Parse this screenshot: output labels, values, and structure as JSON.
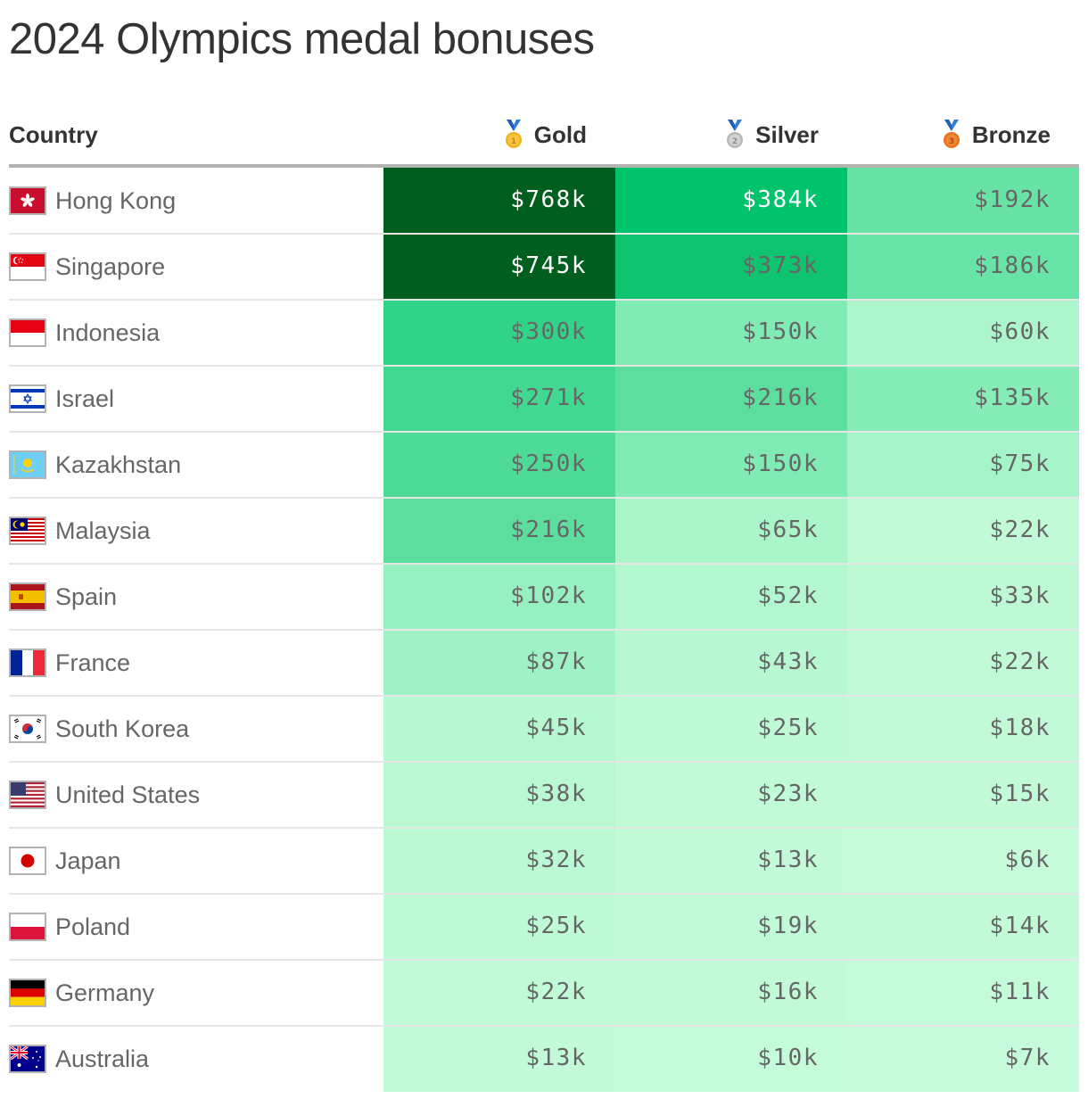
{
  "title": "2024 Olympics medal bonuses",
  "header": {
    "country": "Country",
    "gold": "Gold",
    "silver": "Silver",
    "bronze": "Bronze",
    "icons": [
      "gold-medal-icon",
      "silver-medal-icon",
      "bronze-medal-icon"
    ]
  },
  "rows": [
    {
      "country": "Hong Kong",
      "flag": "flag-hong-kong-icon",
      "gold": "$768k",
      "silver": "$384k",
      "bronze": "$192k",
      "colors": {
        "gold": "#005e1f",
        "silver": "#00c36b",
        "bronze": "#67e3a6"
      },
      "text_light": {
        "gold": true,
        "silver": true,
        "bronze": false
      }
    },
    {
      "country": "Singapore",
      "flag": "flag-singapore-icon",
      "gold": "$745k",
      "silver": "$373k",
      "bronze": "$186k",
      "colors": {
        "gold": "#005e1f",
        "silver": "#0ec46f",
        "bronze": "#69e4a8"
      },
      "text_light": {
        "gold": true,
        "silver": false,
        "bronze": false
      }
    },
    {
      "country": "Indonesia",
      "flag": "flag-indonesia-icon",
      "gold": "$300k",
      "silver": "$150k",
      "bronze": "$60k",
      "colors": {
        "gold": "#30d388",
        "silver": "#80ebb5",
        "bronze": "#adf6cd"
      }
    },
    {
      "country": "Israel",
      "flag": "flag-israel-icon",
      "gold": "$271k",
      "silver": "$216k",
      "bronze": "$135k",
      "colors": {
        "gold": "#41d891",
        "silver": "#5cdf9e",
        "bronze": "#86ecb8"
      }
    },
    {
      "country": "Kazakhstan",
      "flag": "flag-kazakhstan-icon",
      "gold": "$250k",
      "silver": "$150k",
      "bronze": "$75k",
      "colors": {
        "gold": "#4edb98",
        "silver": "#80ebb5",
        "bronze": "#a6f4c9"
      }
    },
    {
      "country": "Malaysia",
      "flag": "flag-malaysia-icon",
      "gold": "$216k",
      "silver": "$65k",
      "bronze": "$22k",
      "colors": {
        "gold": "#5cdf9e",
        "silver": "#abf5cb",
        "bronze": "#c1fad7"
      }
    },
    {
      "country": "Spain",
      "flag": "flag-spain-icon",
      "gold": "$102k",
      "silver": "$52k",
      "bronze": "$33k",
      "colors": {
        "gold": "#96f0c1",
        "silver": "#b2f7cf",
        "bronze": "#bdf9d4"
      }
    },
    {
      "country": "France",
      "flag": "flag-france-icon",
      "gold": "$87k",
      "silver": "$43k",
      "bronze": "$22k",
      "colors": {
        "gold": "#9ef2c5",
        "silver": "#b7f8d2",
        "bronze": "#c1fad7"
      }
    },
    {
      "country": "South Korea",
      "flag": "flag-south-korea-icon",
      "gold": "$45k",
      "silver": "$25k",
      "bronze": "$18k",
      "colors": {
        "gold": "#b5f8d1",
        "silver": "#bffad6",
        "bronze": "#c2fad8"
      }
    },
    {
      "country": "United States",
      "flag": "flag-united-states-icon",
      "gold": "$38k",
      "silver": "$23k",
      "bronze": "$15k",
      "colors": {
        "gold": "#b9f8d3",
        "silver": "#c0fad7",
        "bronze": "#c3fbd8"
      }
    },
    {
      "country": "Japan",
      "flag": "flag-japan-icon",
      "gold": "$32k",
      "silver": "$13k",
      "bronze": "$6k",
      "colors": {
        "gold": "#bbf9d4",
        "silver": "#c3fbd8",
        "bronze": "#c6fbda"
      }
    },
    {
      "country": "Poland",
      "flag": "flag-poland-icon",
      "gold": "$25k",
      "silver": "$19k",
      "bronze": "$14k",
      "colors": {
        "gold": "#bffad6",
        "silver": "#c1fad7",
        "bronze": "#c3fbd8"
      }
    },
    {
      "country": "Germany",
      "flag": "flag-germany-icon",
      "gold": "$22k",
      "silver": "$16k",
      "bronze": "$11k",
      "colors": {
        "gold": "#c0fad7",
        "silver": "#c2fad8",
        "bronze": "#c4fbd9"
      }
    },
    {
      "country": "Australia",
      "flag": "flag-australia-icon",
      "gold": "$13k",
      "silver": "$10k",
      "bronze": "$7k",
      "colors": {
        "gold": "#c3fbd8",
        "silver": "#c4fbd9",
        "bronze": "#c5fbda"
      }
    }
  ],
  "chart_data": {
    "type": "table",
    "title": "2024 Olympics medal bonuses",
    "columns": [
      "Country",
      "Gold",
      "Silver",
      "Bronze"
    ],
    "units": "USD thousands",
    "categories": [
      "Hong Kong",
      "Singapore",
      "Indonesia",
      "Israel",
      "Kazakhstan",
      "Malaysia",
      "Spain",
      "France",
      "South Korea",
      "United States",
      "Japan",
      "Poland",
      "Germany",
      "Australia"
    ],
    "series": [
      {
        "name": "Gold",
        "values": [
          768,
          745,
          300,
          271,
          250,
          216,
          102,
          87,
          45,
          38,
          32,
          25,
          22,
          13
        ]
      },
      {
        "name": "Silver",
        "values": [
          384,
          373,
          150,
          216,
          150,
          65,
          52,
          43,
          25,
          23,
          13,
          19,
          16,
          10
        ]
      },
      {
        "name": "Bronze",
        "values": [
          192,
          186,
          60,
          135,
          75,
          22,
          33,
          22,
          18,
          15,
          6,
          14,
          11,
          7
        ]
      }
    ],
    "color_scale": "heatmap green (light #c5fbda low to dark #005e1f high)"
  }
}
